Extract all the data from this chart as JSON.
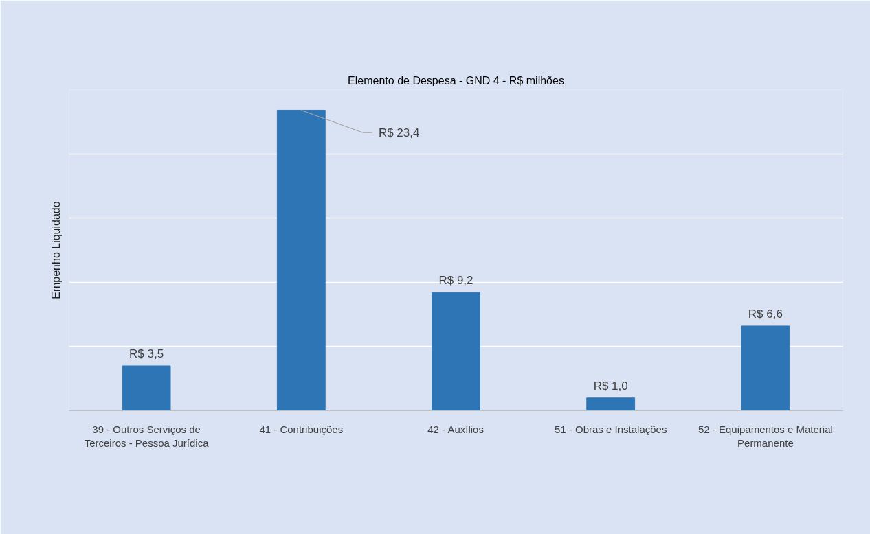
{
  "chart_data": {
    "type": "bar",
    "title": "Elemento de Despesa - GND 4 - R$ milhões",
    "ylabel": "Empenho Liquidado",
    "categories": [
      "39 - Outros Serviços de Terceiros - Pessoa Jurídica",
      "41 - Contribuições",
      "42 - Auxílios",
      "51 - Obras e Instalações",
      "52 - Equipamentos e Material Permanente"
    ],
    "values": [
      3.5,
      23.4,
      9.2,
      1.0,
      6.6
    ],
    "value_labels": [
      "R$ 3,5",
      "R$ 23,4",
      "R$ 9,2",
      "R$ 1,0",
      "R$ 6,6"
    ],
    "color": "#2e75b6",
    "ylim": [
      0,
      25
    ],
    "yticks": [
      {
        "value": 0,
        "label": null
      },
      {
        "value": 5,
        "label": null
      },
      {
        "value": 10,
        "label": null
      },
      {
        "value": 15,
        "label": null
      },
      {
        "value": 20,
        "label": null
      },
      {
        "value": 25,
        "label": null
      }
    ],
    "tick_labels": "x",
    "grid": "y"
  }
}
